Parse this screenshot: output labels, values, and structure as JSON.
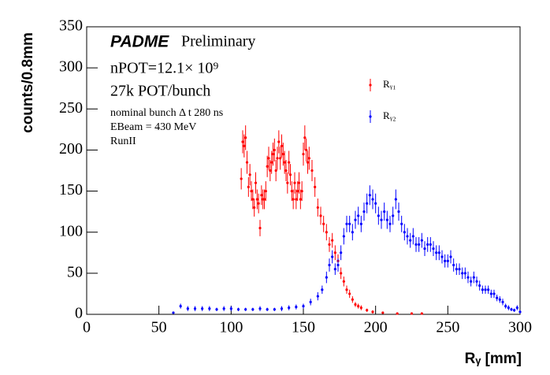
{
  "chart_data": {
    "type": "scatter",
    "title": "PADME",
    "subtitle": "Preliminary",
    "annotations": [
      "nPOT=12.1× 10⁹",
      "27k POT/bunch",
      "nominal bunch Δ t 280 ns",
      "EBeam = 430 MeV",
      "RunII"
    ],
    "x_label": "Rᵧ [mm]",
    "y_label": "counts/0.8mm",
    "xlim": [
      0,
      300
    ],
    "ylim": [
      0,
      350
    ],
    "xticks": [
      0,
      50,
      100,
      150,
      200,
      250,
      300
    ],
    "yticks": [
      0,
      50,
      100,
      150,
      200,
      250,
      300,
      350
    ],
    "legend": "upper right",
    "series": [
      {
        "name": "Rᵧ₁",
        "color": "#ff0000",
        "x": [
          107,
          108,
          109,
          110,
          111,
          112,
          113,
          114,
          115,
          116,
          117,
          118,
          119,
          120,
          121,
          122,
          123,
          124,
          125,
          126,
          127,
          128,
          129,
          130,
          131,
          132,
          133,
          134,
          135,
          136,
          137,
          138,
          139,
          140,
          141,
          142,
          143,
          144,
          145,
          146,
          147,
          148,
          149,
          150,
          151,
          152,
          153,
          154,
          156,
          158,
          160,
          162,
          164,
          166,
          168,
          170,
          172,
          174,
          176,
          178,
          180,
          182,
          184,
          186,
          188,
          190,
          194,
          198,
          205,
          215,
          225,
          232
        ],
        "values": [
          165,
          210,
          205,
          215,
          185,
          155,
          170,
          150,
          140,
          130,
          160,
          140,
          135,
          105,
          145,
          140,
          140,
          150,
          180,
          190,
          175,
          185,
          195,
          200,
          175,
          190,
          210,
          190,
          205,
          195,
          185,
          175,
          160,
          185,
          170,
          150,
          140,
          160,
          140,
          150,
          160,
          140,
          150,
          195,
          215,
          200,
          185,
          190,
          175,
          155,
          130,
          120,
          110,
          100,
          85,
          90,
          75,
          65,
          50,
          40,
          30,
          25,
          18,
          12,
          10,
          8,
          5,
          3,
          2,
          1,
          1,
          1
        ],
        "errors": [
          13,
          14,
          14,
          15,
          14,
          12,
          13,
          12,
          12,
          11,
          13,
          12,
          12,
          10,
          12,
          12,
          12,
          12,
          13,
          14,
          13,
          14,
          14,
          14,
          13,
          14,
          14,
          14,
          14,
          14,
          14,
          13,
          13,
          14,
          13,
          12,
          12,
          13,
          12,
          12,
          13,
          12,
          12,
          14,
          15,
          14,
          14,
          14,
          13,
          12,
          11,
          11,
          10,
          10,
          9,
          9,
          9,
          8,
          7,
          6,
          5,
          5,
          4,
          3,
          3,
          3,
          2,
          2,
          1,
          1,
          1,
          1
        ]
      },
      {
        "name": "Rᵧ₂",
        "color": "#0000ff",
        "x": [
          60,
          65,
          70,
          75,
          80,
          85,
          90,
          95,
          100,
          105,
          110,
          115,
          120,
          125,
          130,
          135,
          140,
          145,
          150,
          155,
          160,
          163,
          166,
          168,
          170,
          172,
          174,
          176,
          178,
          180,
          182,
          184,
          186,
          188,
          190,
          192,
          194,
          196,
          198,
          200,
          202,
          204,
          206,
          208,
          210,
          212,
          214,
          216,
          218,
          220,
          222,
          224,
          226,
          228,
          230,
          232,
          234,
          236,
          238,
          240,
          242,
          244,
          246,
          248,
          250,
          252,
          254,
          256,
          258,
          260,
          262,
          264,
          266,
          268,
          270,
          272,
          274,
          276,
          278,
          280,
          282,
          284,
          286,
          288,
          290,
          292,
          294,
          296,
          298,
          300
        ],
        "values": [
          2,
          10,
          7,
          7,
          7,
          7,
          6,
          7,
          7,
          6,
          6,
          6,
          7,
          6,
          6,
          7,
          8,
          9,
          10,
          15,
          22,
          30,
          45,
          60,
          70,
          55,
          60,
          75,
          95,
          110,
          110,
          100,
          115,
          120,
          110,
          125,
          135,
          145,
          140,
          135,
          120,
          115,
          125,
          115,
          110,
          120,
          140,
          125,
          110,
          100,
          95,
          90,
          95,
          85,
          85,
          90,
          80,
          85,
          85,
          80,
          75,
          75,
          70,
          65,
          65,
          70,
          60,
          55,
          55,
          50,
          50,
          45,
          40,
          45,
          40,
          35,
          30,
          30,
          30,
          25,
          25,
          20,
          18,
          15,
          10,
          8,
          6,
          5,
          8,
          3
        ],
        "errors": [
          1,
          3,
          3,
          3,
          3,
          3,
          2,
          3,
          3,
          2,
          2,
          2,
          3,
          2,
          2,
          3,
          3,
          3,
          3,
          4,
          5,
          5,
          7,
          8,
          8,
          7,
          8,
          9,
          10,
          10,
          10,
          10,
          11,
          11,
          10,
          11,
          12,
          12,
          12,
          12,
          11,
          11,
          11,
          11,
          10,
          11,
          12,
          11,
          10,
          10,
          10,
          9,
          10,
          9,
          9,
          9,
          9,
          9,
          9,
          9,
          9,
          9,
          8,
          8,
          8,
          8,
          8,
          7,
          7,
          7,
          7,
          7,
          6,
          7,
          6,
          6,
          5,
          5,
          5,
          5,
          5,
          4,
          4,
          4,
          3,
          3,
          2,
          2,
          3,
          2
        ]
      }
    ]
  }
}
